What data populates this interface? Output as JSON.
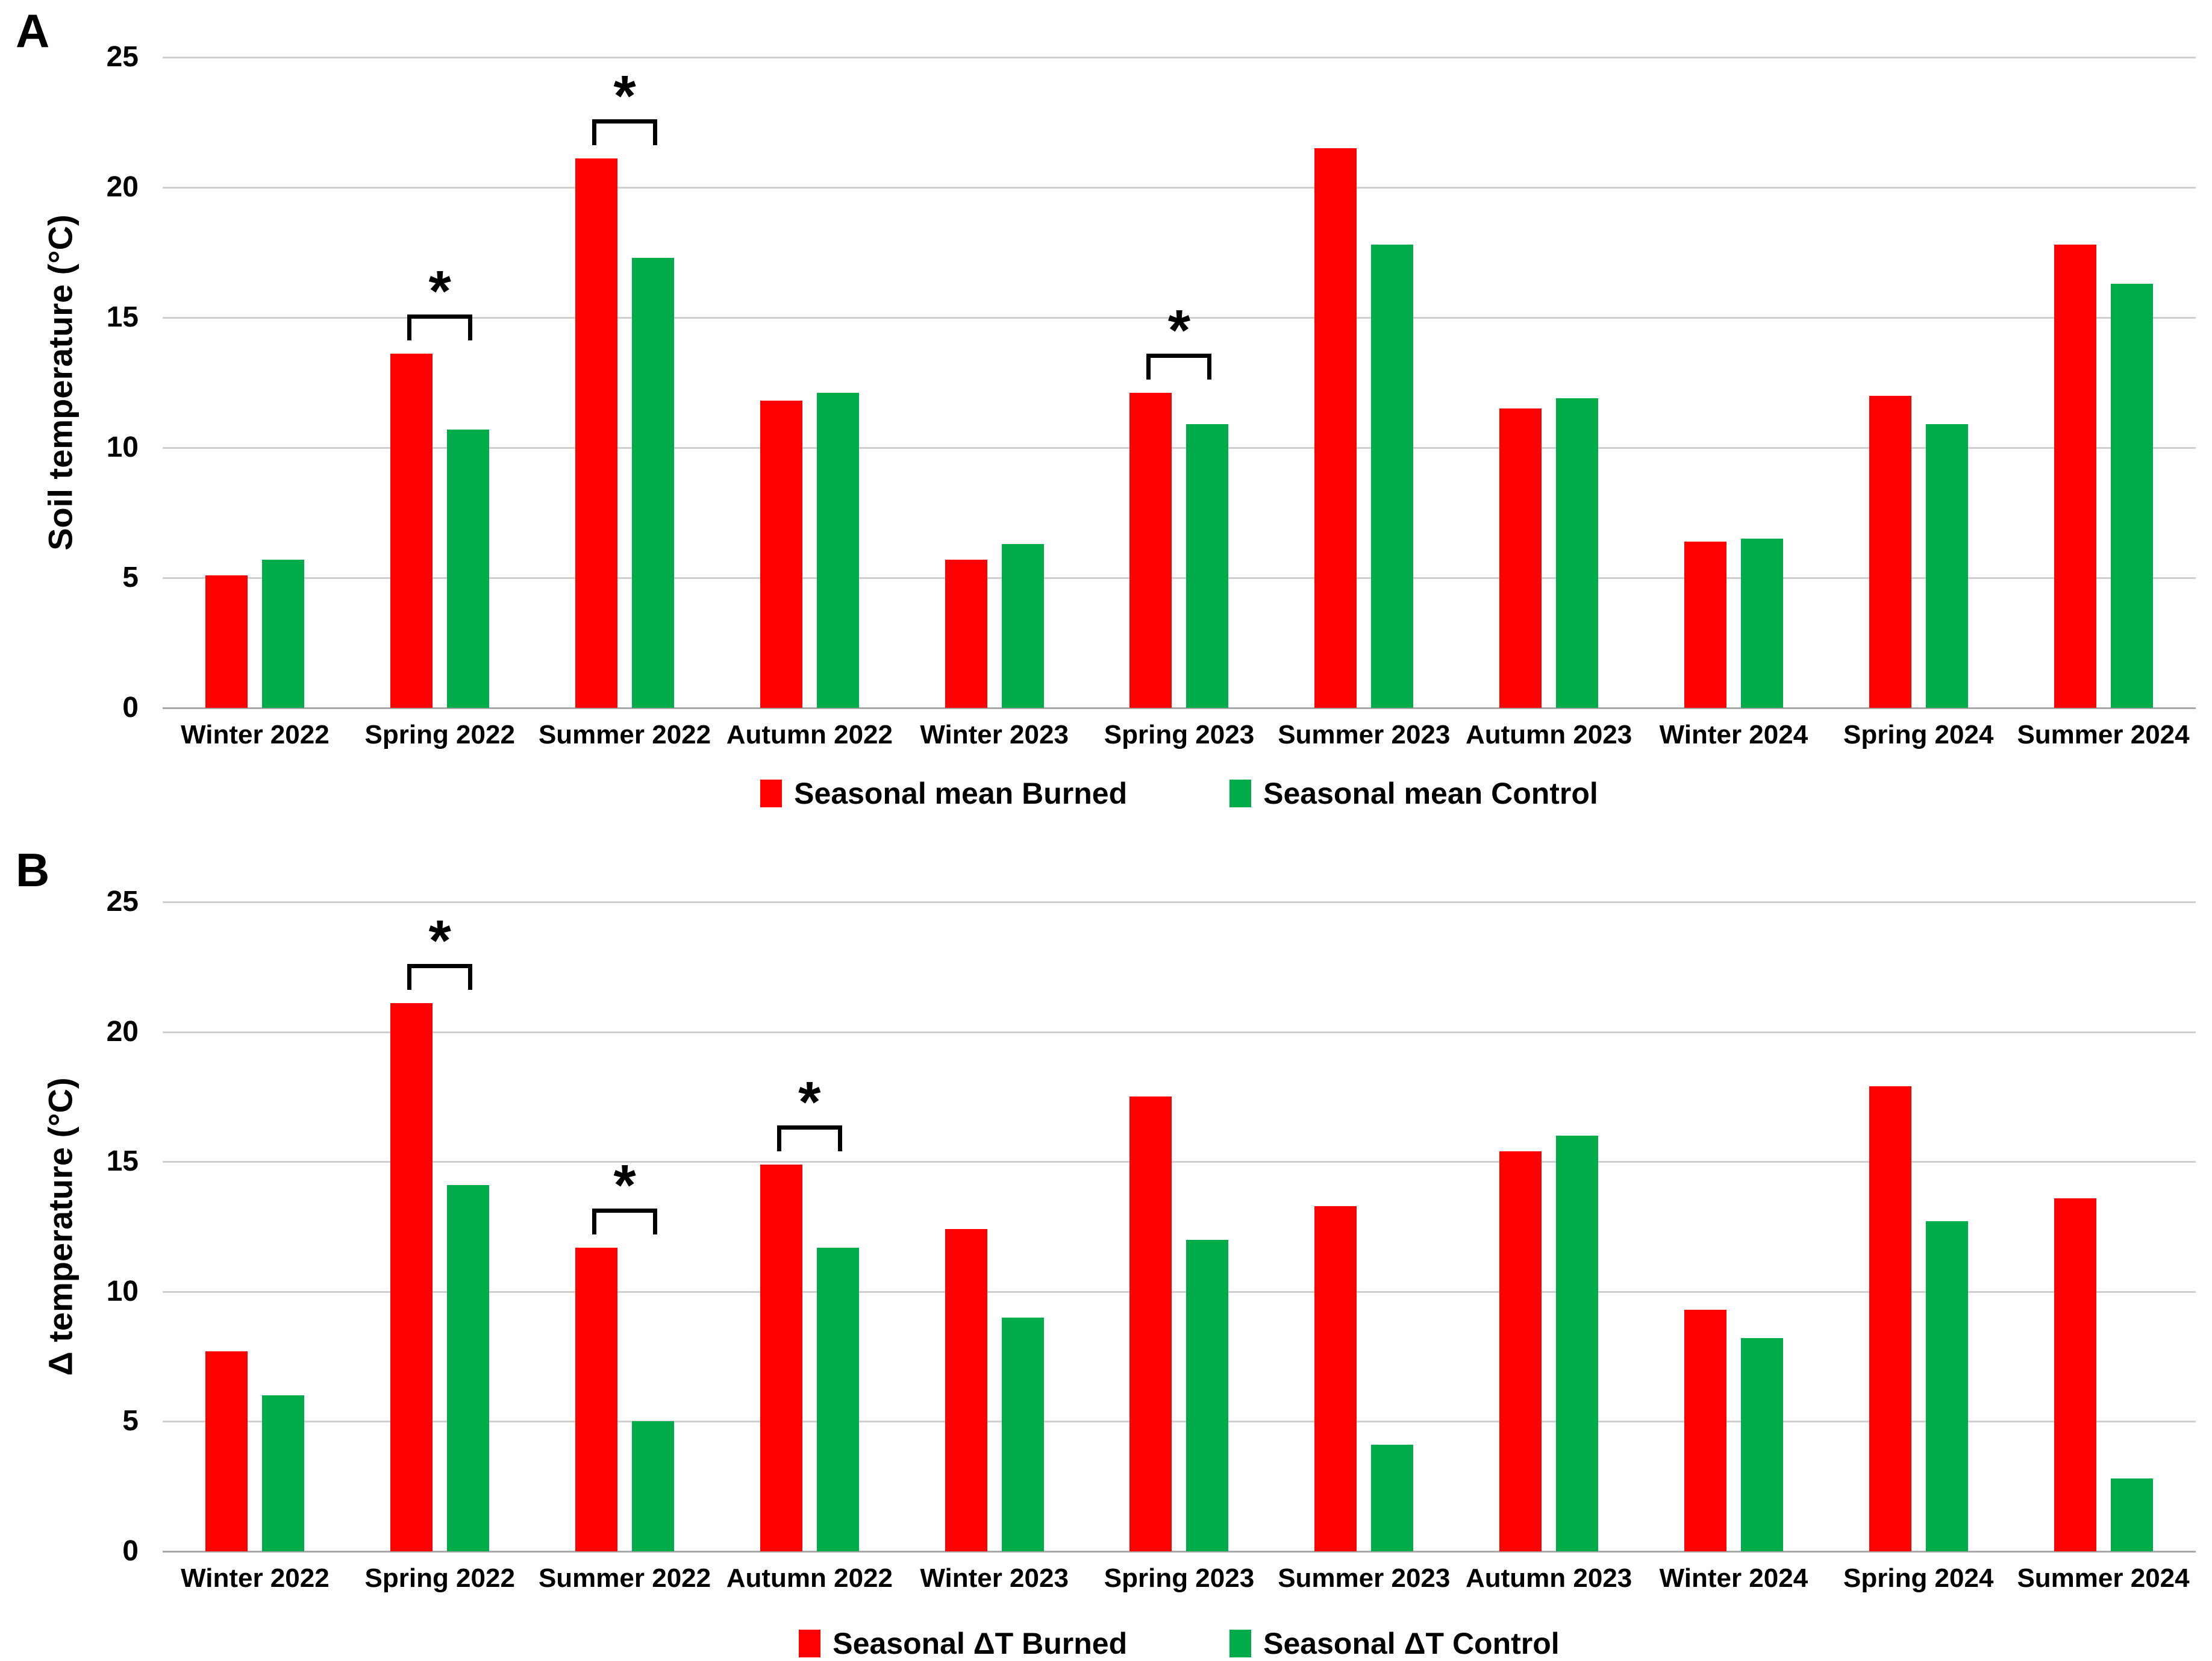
{
  "panels": [
    {
      "letter": "A"
    },
    {
      "letter": "B"
    }
  ],
  "significance_symbol": "*",
  "colors": {
    "burned": "#ff0000",
    "control": "#00ac4a"
  },
  "chart_data": [
    {
      "type": "bar",
      "panel": "A",
      "ylabel": "Soil temperature (°C)",
      "xlabel": "",
      "ylim": [
        0,
        25
      ],
      "yticks": [
        0,
        5,
        10,
        15,
        20,
        25
      ],
      "grid": true,
      "legend_position": "bottom",
      "categories": [
        "Winter 2022",
        "Spring 2022",
        "Summer 2022",
        "Autumn 2022",
        "Winter 2023",
        "Spring 2023",
        "Summer 2023",
        "Autumn 2023",
        "Winter 2024",
        "Spring 2024",
        "Summer 2024"
      ],
      "series": [
        {
          "name": "Seasonal mean Burned",
          "color": "#ff0000",
          "values": [
            5.1,
            13.6,
            21.1,
            11.8,
            5.7,
            12.1,
            21.5,
            11.5,
            6.4,
            12.0,
            17.8
          ]
        },
        {
          "name": "Seasonal mean Control",
          "color": "#00ac4a",
          "values": [
            5.7,
            10.7,
            17.3,
            12.1,
            6.3,
            10.9,
            17.8,
            11.9,
            6.5,
            10.9,
            16.3
          ]
        }
      ],
      "significance_brackets": [
        "Spring 2022",
        "Summer 2022",
        "Spring 2023"
      ]
    },
    {
      "type": "bar",
      "panel": "B",
      "ylabel": "Δ temperature (°C)",
      "xlabel": "",
      "ylim": [
        0,
        25
      ],
      "yticks": [
        0,
        5,
        10,
        15,
        20,
        25
      ],
      "grid": true,
      "legend_position": "bottom",
      "categories": [
        "Winter 2022",
        "Spring 2022",
        "Summer 2022",
        "Autumn 2022",
        "Winter 2023",
        "Spring 2023",
        "Summer 2023",
        "Autumn 2023",
        "Winter 2024",
        "Spring 2024",
        "Summer 2024"
      ],
      "series": [
        {
          "name": "Seasonal ΔT Burned",
          "color": "#ff0000",
          "values": [
            7.7,
            21.1,
            11.7,
            14.9,
            12.4,
            17.5,
            13.3,
            15.4,
            9.3,
            17.9,
            13.6
          ]
        },
        {
          "name": "Seasonal ΔT Control",
          "color": "#00ac4a",
          "values": [
            6.0,
            14.1,
            5.0,
            11.7,
            9.0,
            12.0,
            4.1,
            16.0,
            8.2,
            12.7,
            2.8
          ]
        }
      ],
      "significance_brackets": [
        "Spring 2022",
        "Summer 2022",
        "Autumn 2022"
      ]
    }
  ]
}
